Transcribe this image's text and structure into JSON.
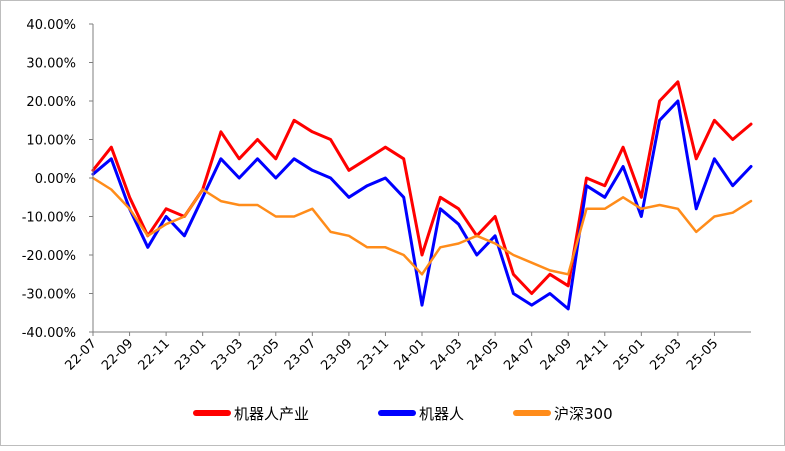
{
  "chart_data": {
    "type": "line",
    "title": "",
    "xlabel": "",
    "ylabel": "",
    "y_unit": "percent",
    "ylim": [
      -40,
      40
    ],
    "y_ticks": [
      40,
      30,
      20,
      10,
      0,
      -10,
      -20,
      -30,
      -40
    ],
    "y_tick_labels": [
      "40.00%",
      "30.00%",
      "20.00%",
      "10.00%",
      "0.00%",
      "-10.00%",
      "-20.00%",
      "-30.00%",
      "-40.00%"
    ],
    "x_range": [
      "2022-07",
      "2025-07"
    ],
    "x_ticks": [
      "2022-07",
      "2022-09",
      "2022-11",
      "2023-01",
      "2023-03",
      "2023-05",
      "2023-07",
      "2023-09",
      "2023-11",
      "2024-01",
      "2024-03",
      "2024-05",
      "2024-07",
      "2024-09",
      "2024-11",
      "2025-01",
      "2025-03",
      "2025-05"
    ],
    "x_tick_labels": [
      "22-07",
      "22-09",
      "22-11",
      "23-01",
      "23-03",
      "23-05",
      "23-07",
      "23-09",
      "23-11",
      "24-01",
      "24-03",
      "24-05",
      "24-07",
      "24-09",
      "24-11",
      "25-01",
      "25-03",
      "25-05"
    ],
    "grid": false,
    "legend_position": "bottom",
    "series": [
      {
        "name": "机器人产业",
        "color": "#ff0000",
        "x": [
          "2022-07",
          "2022-08",
          "2022-09",
          "2022-10",
          "2022-11",
          "2022-12",
          "2023-01",
          "2023-02",
          "2023-03",
          "2023-04",
          "2023-05",
          "2023-06",
          "2023-07",
          "2023-08",
          "2023-09",
          "2023-10",
          "2023-11",
          "2023-12",
          "2024-01",
          "2024-02",
          "2024-03",
          "2024-04",
          "2024-05",
          "2024-06",
          "2024-07",
          "2024-08",
          "2024-09",
          "2024-10",
          "2024-11",
          "2024-12",
          "2025-01",
          "2025-02",
          "2025-03",
          "2025-04",
          "2025-05",
          "2025-06",
          "2025-07"
        ],
        "values": [
          2,
          8,
          -5,
          -15,
          -8,
          -10,
          -3,
          12,
          5,
          10,
          5,
          15,
          12,
          10,
          2,
          5,
          8,
          5,
          -20,
          -5,
          -8,
          -15,
          -10,
          -25,
          -30,
          -25,
          -28,
          0,
          -2,
          8,
          -5,
          20,
          25,
          5,
          15,
          10,
          14
        ]
      },
      {
        "name": "机器人",
        "color": "#0000ff",
        "x": [
          "2022-07",
          "2022-08",
          "2022-09",
          "2022-10",
          "2022-11",
          "2022-12",
          "2023-01",
          "2023-02",
          "2023-03",
          "2023-04",
          "2023-05",
          "2023-06",
          "2023-07",
          "2023-08",
          "2023-09",
          "2023-10",
          "2023-11",
          "2023-12",
          "2024-01",
          "2024-02",
          "2024-03",
          "2024-04",
          "2024-05",
          "2024-06",
          "2024-07",
          "2024-08",
          "2024-09",
          "2024-10",
          "2024-11",
          "2024-12",
          "2025-01",
          "2025-02",
          "2025-03",
          "2025-04",
          "2025-05",
          "2025-06",
          "2025-07"
        ],
        "values": [
          1,
          5,
          -8,
          -18,
          -10,
          -15,
          -5,
          5,
          0,
          5,
          0,
          5,
          2,
          0,
          -5,
          -2,
          0,
          -5,
          -33,
          -8,
          -12,
          -20,
          -15,
          -30,
          -33,
          -30,
          -34,
          -2,
          -5,
          3,
          -10,
          15,
          20,
          -8,
          5,
          -2,
          3
        ]
      },
      {
        "name": "沪深300",
        "color": "#ff8c1a",
        "x": [
          "2022-07",
          "2022-08",
          "2022-09",
          "2022-10",
          "2022-11",
          "2022-12",
          "2023-01",
          "2023-02",
          "2023-03",
          "2023-04",
          "2023-05",
          "2023-06",
          "2023-07",
          "2023-08",
          "2023-09",
          "2023-10",
          "2023-11",
          "2023-12",
          "2024-01",
          "2024-02",
          "2024-03",
          "2024-04",
          "2024-05",
          "2024-06",
          "2024-07",
          "2024-08",
          "2024-09",
          "2024-10",
          "2024-11",
          "2024-12",
          "2025-01",
          "2025-02",
          "2025-03",
          "2025-04",
          "2025-05",
          "2025-06",
          "2025-07"
        ],
        "values": [
          0,
          -3,
          -8,
          -15,
          -12,
          -10,
          -3,
          -6,
          -7,
          -7,
          -10,
          -10,
          -8,
          -14,
          -15,
          -18,
          -18,
          -20,
          -25,
          -18,
          -17,
          -15,
          -17,
          -20,
          -22,
          -24,
          -25,
          -8,
          -8,
          -5,
          -8,
          -7,
          -8,
          -14,
          -10,
          -9,
          -6
        ]
      }
    ]
  }
}
